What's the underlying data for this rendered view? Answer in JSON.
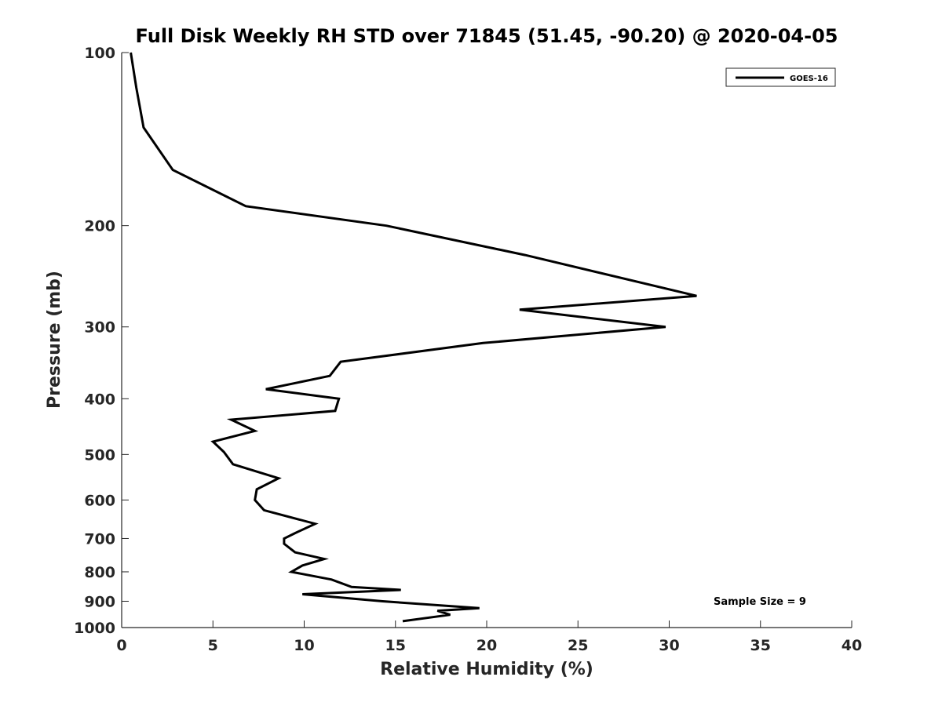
{
  "chart_data": {
    "type": "line",
    "title": "Full Disk Weekly RH STD over 71845 (51.45, -90.20) @ 2020-04-05",
    "xlabel": "Relative Humidity (%)",
    "ylabel": "Pressure (mb)",
    "xlim": [
      0,
      40
    ],
    "ylim": [
      100,
      1000
    ],
    "yscale": "log",
    "y_reversed": true,
    "x_ticks": [
      "0",
      "5",
      "10",
      "15",
      "20",
      "25",
      "30",
      "35",
      "40"
    ],
    "y_ticks": [
      "100",
      "200",
      "300",
      "400",
      "500",
      "600",
      "700",
      "800",
      "900",
      "1000"
    ],
    "grid": false,
    "legend_position": "top-right",
    "series": [
      {
        "name": "GOES-16",
        "color": "#000000",
        "x": [
          0.5,
          0.8,
          1.2,
          2.8,
          6.8,
          14.5,
          22.1,
          31.5,
          21.8,
          29.8,
          19.8,
          12.0,
          11.4,
          7.9,
          11.9,
          11.7,
          6.0,
          7.3,
          5.0,
          5.6,
          6.1,
          8.6,
          7.4,
          7.3,
          7.8,
          10.6,
          9.5,
          8.9,
          8.9,
          9.5,
          11.1,
          9.9,
          9.3,
          11.5,
          12.6,
          15.3,
          9.9,
          14.3,
          19.6,
          17.3,
          18.0,
          15.4
        ],
        "y": [
          100,
          115,
          135,
          160,
          185,
          200,
          225,
          265,
          280,
          300,
          320,
          345,
          365,
          385,
          400,
          420,
          435,
          455,
          475,
          495,
          520,
          550,
          575,
          600,
          625,
          660,
          685,
          700,
          715,
          740,
          760,
          780,
          800,
          825,
          850,
          860,
          875,
          900,
          925,
          935,
          950,
          975
        ]
      }
    ],
    "annotations": [
      "Sample Size = 9"
    ]
  }
}
